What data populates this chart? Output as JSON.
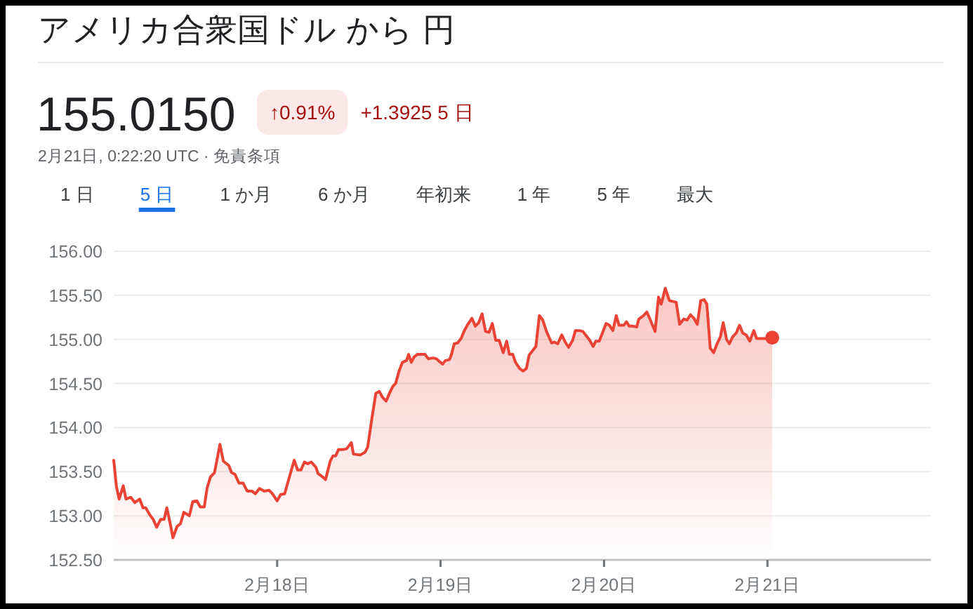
{
  "chart_data": {
    "type": "area",
    "title": "アメリカ合衆国ドル から 円",
    "subtitle": "155.0150",
    "annotations": [
      "↑0.91%",
      "+1.3925 5 日",
      "2月21日, 0:22:20 UTC · 免責条項",
      "1 日",
      "5 日",
      "1 か月",
      "6 か月",
      "年初来",
      "1 年",
      "5 年",
      "最大"
    ],
    "xlim": [
      "--02-17T00:00",
      "--02-22T00:00"
    ],
    "xticks": [
      {
        "value": "--02-18",
        "label": "2月18日"
      },
      {
        "value": "--02-19",
        "label": "2月19日"
      },
      {
        "value": "--02-20",
        "label": "2月20日"
      },
      {
        "value": "--02-21",
        "label": "2月21日"
      }
    ],
    "ylim": [
      152.5,
      156
    ],
    "yticks": [
      {
        "value": 152.5,
        "label": "152.50"
      },
      {
        "value": 153,
        "label": "153.00"
      },
      {
        "value": 153.5,
        "label": "153.50"
      },
      {
        "value": 154,
        "label": "154.00"
      },
      {
        "value": 154.5,
        "label": "154.50"
      },
      {
        "value": 155,
        "label": "155.00"
      },
      {
        "value": 155.5,
        "label": "155.50"
      },
      {
        "value": 156,
        "label": "156.00"
      }
    ],
    "grid": "y",
    "series": [
      {
        "color": "#ea4335",
        "x": [
          "--02-17T00:00",
          "--02-17T00:24",
          "--02-17T00:48",
          "--02-17T01:24",
          "--02-17T01:48",
          "--02-17T02:30",
          "--02-17T03:06",
          "--02-17T03:48",
          "--02-17T04:18",
          "--02-17T04:42",
          "--02-17T05:18",
          "--02-17T05:48",
          "--02-17T06:18",
          "--02-17T06:54",
          "--02-17T07:24",
          "--02-17T07:48",
          "--02-17T08:18",
          "--02-17T08:42",
          "--02-17T09:18",
          "--02-17T09:48",
          "--02-17T10:18",
          "--02-17T11:06",
          "--02-17T11:36",
          "--02-17T12:12",
          "--02-17T12:42",
          "--02-17T13:18",
          "--02-17T13:42",
          "--02-17T14:12",
          "--02-17T14:48",
          "--02-17T15:36",
          "--02-17T16:06",
          "--02-17T16:54",
          "--02-17T17:18",
          "--02-17T17:48",
          "--02-17T18:24",
          "--02-17T19:00",
          "--02-17T19:36",
          "--02-17T20:18",
          "--02-17T20:48",
          "--02-17T21:24",
          "--02-17T22:06",
          "--02-17T22:48",
          "--02-17T23:18",
          "--02-18T00:00",
          "--02-18T00:30",
          "--02-18T01:06",
          "--02-18T01:48",
          "--02-18T02:30",
          "--02-18T03:00",
          "--02-18T03:30",
          "--02-18T04:00",
          "--02-18T04:30",
          "--02-18T05:00",
          "--02-18T05:42",
          "--02-18T06:00",
          "--02-18T06:42",
          "--02-18T07:06",
          "--02-18T07:48",
          "--02-18T08:12",
          "--02-18T08:36",
          "--02-18T09:00",
          "--02-18T09:36",
          "--02-18T10:12",
          "--02-18T10:54",
          "--02-18T11:12",
          "--02-18T12:12",
          "--02-18T12:54",
          "--02-18T13:18",
          "--02-18T13:54",
          "--02-18T14:30",
          "--02-18T15:00",
          "--02-18T15:30",
          "--02-18T16:00",
          "--02-18T16:30",
          "--02-18T17:00",
          "--02-18T17:24",
          "--02-18T17:54",
          "--02-18T18:24",
          "--02-18T19:00",
          "--02-18T19:18",
          "--02-18T19:42",
          "--02-18T20:06",
          "--02-18T20:36",
          "--02-18T21:12",
          "--02-18T21:42",
          "--02-18T22:12",
          "--02-18T22:54",
          "--02-18T23:24",
          "--02-18T23:48",
          "--02-19T00:18",
          "--02-19T00:42",
          "--02-19T01:18",
          "--02-19T01:36",
          "--02-19T02:00",
          "--02-19T02:30",
          "--02-19T03:00",
          "--02-19T03:30",
          "--02-19T04:00",
          "--02-19T04:36",
          "--02-19T05:06",
          "--02-19T05:36",
          "--02-19T06:06",
          "--02-19T06:36",
          "--02-19T07:06",
          "--02-19T07:36",
          "--02-19T08:06",
          "--02-19T08:36",
          "--02-19T09:12",
          "--02-19T09:42",
          "--02-19T10:06",
          "--02-19T10:36",
          "--02-19T11:00",
          "--02-19T11:36",
          "--02-19T12:06",
          "--02-19T12:36",
          "--02-19T13:00",
          "--02-19T13:30",
          "--02-19T14:00",
          "--02-19T14:30",
          "--02-19T15:00",
          "--02-19T15:36",
          "--02-19T16:18",
          "--02-19T16:42",
          "--02-19T17:12",
          "--02-19T17:48",
          "--02-19T18:18",
          "--02-19T18:48",
          "--02-19T19:24",
          "--02-19T19:48",
          "--02-19T20:24",
          "--02-19T20:54",
          "--02-19T21:18",
          "--02-19T21:54",
          "--02-19T22:24",
          "--02-19T22:48",
          "--02-19T23:18",
          "--02-19T23:48",
          "--02-20T00:18",
          "--02-20T00:48",
          "--02-20T01:18",
          "--02-20T01:48",
          "--02-20T02:12",
          "--02-20T02:54",
          "--02-20T03:18",
          "--02-20T03:42",
          "--02-20T04:18",
          "--02-20T04:48",
          "--02-20T05:06",
          "--02-20T05:48",
          "--02-20T06:18",
          "--02-20T06:48",
          "--02-20T07:30",
          "--02-20T08:00",
          "--02-20T08:24",
          "--02-20T09:00",
          "--02-20T09:36",
          "--02-20T10:06",
          "--02-20T10:36",
          "--02-20T11:06",
          "--02-20T11:42",
          "--02-20T12:12",
          "--02-20T12:42",
          "--02-20T13:12",
          "--02-20T13:42",
          "--02-20T14:12",
          "--02-20T14:42",
          "--02-20T15:06",
          "--02-20T15:36",
          "--02-20T16:06",
          "--02-20T16:36",
          "--02-20T17:06",
          "--02-20T17:30",
          "--02-20T18:00",
          "--02-20T18:24",
          "--02-20T18:54",
          "--02-20T19:24",
          "--02-20T19:54",
          "--02-20T20:24",
          "--02-20T20:54",
          "--02-20T21:24",
          "--02-20T22:00",
          "--02-20T22:24",
          "--02-20T23:00",
          "--02-20T23:54",
          "--02-21T00:42"
        ],
        "values": [
          153.63,
          153.33,
          153.19,
          153.34,
          153.19,
          153.21,
          153.15,
          153.19,
          153.09,
          153.09,
          153.01,
          152.96,
          152.87,
          152.96,
          152.96,
          153.09,
          152.91,
          152.75,
          152.88,
          152.91,
          153.04,
          153.0,
          153.16,
          153.17,
          153.1,
          153.1,
          153.31,
          153.44,
          153.49,
          153.81,
          153.62,
          153.57,
          153.49,
          153.47,
          153.37,
          153.37,
          153.28,
          153.28,
          153.25,
          153.31,
          153.28,
          153.29,
          153.25,
          153.17,
          153.24,
          153.25,
          153.44,
          153.63,
          153.52,
          153.52,
          153.61,
          153.59,
          153.61,
          153.55,
          153.48,
          153.44,
          153.41,
          153.62,
          153.68,
          153.68,
          153.75,
          153.75,
          153.76,
          153.83,
          153.7,
          153.69,
          153.72,
          153.78,
          154.1,
          154.39,
          154.41,
          154.34,
          154.3,
          154.39,
          154.47,
          154.5,
          154.64,
          154.74,
          154.76,
          154.83,
          154.74,
          154.8,
          154.83,
          154.83,
          154.83,
          154.78,
          154.79,
          154.78,
          154.75,
          154.72,
          154.76,
          154.77,
          154.83,
          154.95,
          154.96,
          155.01,
          155.1,
          155.17,
          155.24,
          155.15,
          155.19,
          155.29,
          155.09,
          155.08,
          155.18,
          154.99,
          154.99,
          154.85,
          154.98,
          154.83,
          154.83,
          154.74,
          154.67,
          154.64,
          154.67,
          154.82,
          154.87,
          154.92,
          155.27,
          155.22,
          155.08,
          154.96,
          154.97,
          154.95,
          155.05,
          154.97,
          154.91,
          154.99,
          155.1,
          155.1,
          155.09,
          155.05,
          154.99,
          154.92,
          154.98,
          154.98,
          155.08,
          155.18,
          155.16,
          155.1,
          155.27,
          155.16,
          155.16,
          155.2,
          155.15,
          155.15,
          155.14,
          155.23,
          155.27,
          155.31,
          155.22,
          155.09,
          155.48,
          155.4,
          155.58,
          155.44,
          155.43,
          155.42,
          155.17,
          155.23,
          155.22,
          155.28,
          155.24,
          155.17,
          155.44,
          155.45,
          155.4,
          154.9,
          154.85,
          154.95,
          155.03,
          155.19,
          155.0,
          154.95,
          155.03,
          155.07,
          155.16,
          155.07,
          155.05,
          154.98,
          155.1,
          155.01,
          155.01,
          155.01,
          155.02
        ]
      },
      {
        "type": "scatter",
        "color": "#ea4335",
        "x": [
          "--02-21T00:42"
        ],
        "values": [
          155.02
        ]
      }
    ]
  }
}
